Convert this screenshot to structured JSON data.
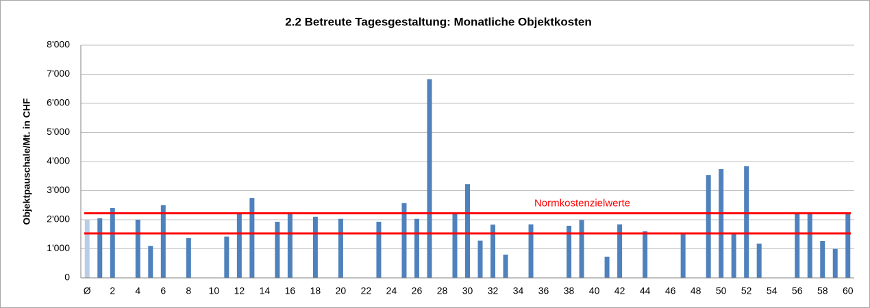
{
  "chart_data": {
    "type": "bar",
    "title": "2.2  Betreute Tagesgestaltung: Monatliche Objektkosten",
    "y_label": "Objektpauschale/Mt. in CHF",
    "categories": [
      "Ø",
      null,
      "2",
      null,
      "4",
      null,
      "6",
      null,
      "8",
      null,
      "10",
      null,
      "12",
      null,
      "14",
      null,
      "16",
      null,
      "18",
      null,
      "20",
      null,
      "22",
      null,
      "24",
      null,
      "26",
      null,
      "28",
      null,
      "30",
      null,
      "32",
      null,
      "34",
      null,
      "36",
      null,
      "38",
      null,
      "40",
      null,
      "42",
      null,
      "44",
      null,
      "46",
      null,
      "48",
      null,
      "50",
      null,
      "52",
      null,
      "54",
      null,
      "56",
      null,
      "58",
      null,
      "60"
    ],
    "values": [
      2000,
      2050,
      2400,
      null,
      2000,
      1100,
      2500,
      null,
      1370,
      null,
      null,
      1420,
      2220,
      2750,
      null,
      1930,
      2220,
      null,
      2100,
      null,
      2030,
      null,
      null,
      1930,
      null,
      2570,
      2030,
      6830,
      null,
      2220,
      3220,
      1280,
      1830,
      800,
      null,
      1840,
      null,
      null,
      1790,
      1990,
      null,
      730,
      1840,
      null,
      1600,
      null,
      null,
      1550,
      null,
      3530,
      3740,
      1550,
      3840,
      1180,
      null,
      null,
      2220,
      2220,
      1270,
      1000,
      2220
    ],
    "color": "#4f81bd",
    "first_color": "#b9cde5",
    "ylim": [
      0,
      8000
    ],
    "yticks": [
      0,
      {
        "value": 1000,
        "label": "1'000"
      },
      {
        "value": 2000,
        "label": "2'000"
      },
      {
        "value": 3000,
        "label": "3'000"
      },
      {
        "value": 4000,
        "label": "4'000"
      },
      {
        "value": 5000,
        "label": "5'000"
      },
      {
        "value": 6000,
        "label": "6'000"
      },
      {
        "value": 7000,
        "label": "7'000"
      },
      {
        "value": 8000,
        "label": "8'000"
      }
    ],
    "grid": true,
    "reference_lines": [
      2220,
      1530
    ],
    "reference_color": "#ff0000",
    "reference_label": "Normkostenzielwerte"
  }
}
